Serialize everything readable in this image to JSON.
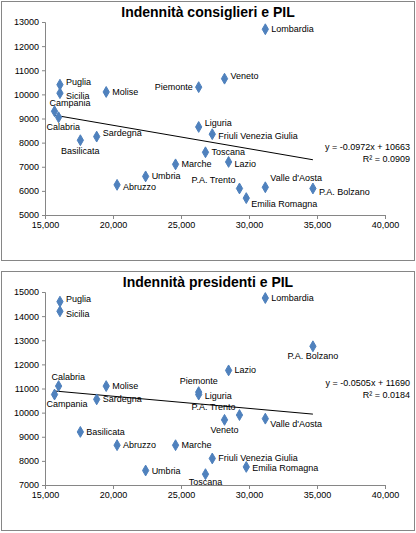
{
  "chart_data": [
    {
      "type": "scatter",
      "title": "Indennità consiglieri e PIL",
      "labels": [
        "Lombardia",
        "Veneto",
        "Piemonte",
        "Molise",
        "Puglia",
        "Sicilia",
        "Campania",
        "Calabria",
        "Sardegna",
        "Basilicata",
        "Liguria",
        "Friuli Venezia Giulia",
        "Toscana",
        "Lazio",
        "Marche",
        "Umbria",
        "Abruzzo",
        "P.A. Trento",
        "Valle d'Aosta",
        "Emilia Romagna",
        "P.A. Bolzano"
      ],
      "x": [
        31200,
        28200,
        26300,
        19500,
        16100,
        16100,
        15700,
        16000,
        18800,
        17600,
        26300,
        27300,
        26800,
        28500,
        24600,
        22400,
        20300,
        29300,
        31200,
        29800,
        34700
      ],
      "values": [
        12700,
        10650,
        10300,
        10100,
        10400,
        10050,
        9300,
        9050,
        8250,
        8100,
        8650,
        8350,
        7600,
        7200,
        7100,
        6600,
        6250,
        6100,
        6150,
        5700,
        6100
      ],
      "color": "#4f81bd",
      "marker": "diamond",
      "grid": false,
      "xlim": [
        15000,
        40000
      ],
      "xticks": [
        {
          "value": 15000,
          "label": "15,000"
        },
        {
          "value": 20000,
          "label": "20,000"
        },
        {
          "value": 25000,
          "label": "25,000"
        },
        {
          "value": 30000,
          "label": "30,000"
        },
        {
          "value": 35000,
          "label": "35,000"
        },
        {
          "value": 40000,
          "label": "40,000"
        }
      ],
      "ylim": [
        5000,
        13000
      ],
      "yticks": [
        5000,
        6000,
        7000,
        8000,
        9000,
        10000,
        11000,
        12000,
        13000
      ],
      "trendline": {
        "x": [
          15700,
          34700
        ],
        "y": [
          9137,
          7290
        ]
      },
      "annotations": [
        "y = -0.0972x + 10663",
        "R² = 0.0909"
      ]
    },
    {
      "type": "scatter",
      "title": "Indennità presidenti e PIL",
      "labels": [
        "Lombardia",
        "Veneto",
        "Piemonte",
        "Molise",
        "Puglia",
        "Sicilia",
        "Campania",
        "Calabria",
        "Sardegna",
        "Basilicata",
        "Liguria",
        "Friuli Venezia Giulia",
        "Toscana",
        "Lazio",
        "Marche",
        "Umbria",
        "Abruzzo",
        "P.A. Trento",
        "Valle d'Aosta",
        "Emilia Romagna",
        "P.A. Bolzano"
      ],
      "x": [
        31200,
        28200,
        26300,
        19500,
        16100,
        16100,
        15700,
        16000,
        18800,
        17600,
        26300,
        27300,
        26800,
        28500,
        24600,
        22400,
        20300,
        29300,
        31200,
        29800,
        34700
      ],
      "values": [
        14750,
        9700,
        10850,
        11100,
        14600,
        14200,
        10750,
        11100,
        10550,
        9200,
        10750,
        8100,
        7450,
        11750,
        8650,
        7600,
        8650,
        9900,
        9750,
        7750,
        12750
      ],
      "color": "#4f81bd",
      "marker": "diamond",
      "grid": false,
      "xlim": [
        15000,
        40000
      ],
      "xticks": [
        {
          "value": 15000,
          "label": "15,000"
        },
        {
          "value": 20000,
          "label": "20,000"
        },
        {
          "value": 25000,
          "label": "25,000"
        },
        {
          "value": 30000,
          "label": "30,000"
        },
        {
          "value": 35000,
          "label": "35,000"
        },
        {
          "value": 40000,
          "label": "40,000"
        }
      ],
      "ylim": [
        7000,
        15000
      ],
      "yticks": [
        7000,
        8000,
        9000,
        10000,
        11000,
        12000,
        13000,
        14000,
        15000
      ],
      "trendline": {
        "x": [
          15700,
          34700
        ],
        "y": [
          10897,
          9938
        ]
      },
      "annotations": [
        "y = -0.0505x + 11690",
        "R² = 0.0184"
      ]
    }
  ]
}
